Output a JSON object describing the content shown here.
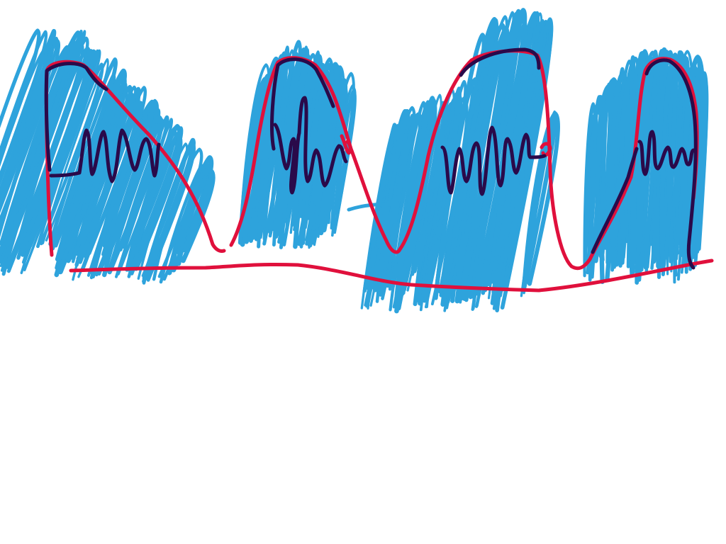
{
  "drawing": {
    "colors": {
      "background": "#ffffff",
      "scribble": "#2ea3dc",
      "outline": "#e0103c",
      "inner_line": "#2a0a4a"
    },
    "shapes": [
      {
        "name": "hill-1",
        "type": "scribble-filled hill with wavy inner line"
      },
      {
        "name": "hill-2",
        "type": "scribble-filled hill with wavy inner line"
      },
      {
        "name": "hill-3",
        "type": "scribble-filled hill with wavy inner line"
      },
      {
        "name": "hill-4",
        "type": "scribble-filled hill with wavy inner line"
      }
    ],
    "baseline": "red ground line"
  }
}
